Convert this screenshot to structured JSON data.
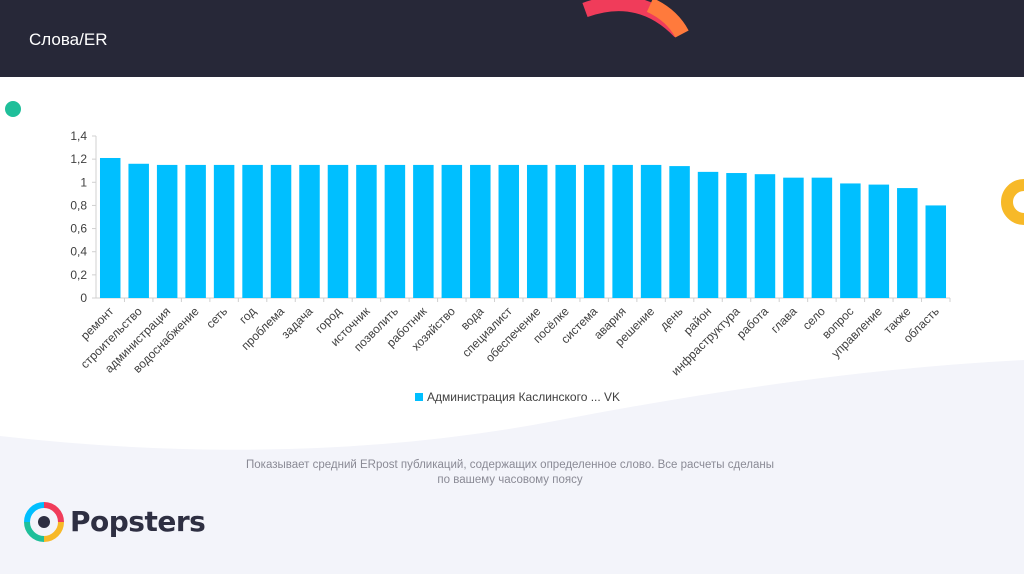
{
  "header": {
    "title": "Слова/ER"
  },
  "caption": {
    "line1": "Показывает средний ERpost публикаций, содержащих определенное слово. Все расчеты сделаны",
    "line2": "по вашему часовому поясу"
  },
  "brand": {
    "name": "Popsters"
  },
  "colors": {
    "header_bg": "#272838",
    "bar": "#00bfff",
    "accent_red": "#f03c5a",
    "accent_orange": "#ff7a3c",
    "accent_yellow": "#f7b928",
    "accent_green": "#1fbf9a"
  },
  "chart_data": {
    "type": "bar",
    "title": "",
    "xlabel": "",
    "ylabel": "",
    "ylim": [
      0,
      1.4
    ],
    "yticks": [
      "0",
      "0,2",
      "0,4",
      "0,6",
      "0,8",
      "1",
      "1,2",
      "1,4"
    ],
    "legend_position": "bottom",
    "grid": false,
    "categories": [
      "ремонт",
      "строительство",
      "администрация",
      "водоснабжение",
      "сеть",
      "год",
      "проблема",
      "задача",
      "город",
      "источник",
      "позволить",
      "работник",
      "хозяйство",
      "вода",
      "специалист",
      "обеспечение",
      "посёлке",
      "система",
      "авария",
      "решение",
      "день",
      "район",
      "инфраструктура",
      "работа",
      "глава",
      "село",
      "вопрос",
      "управление",
      "также",
      "область"
    ],
    "series": [
      {
        "name": "Администрация Каслинского ... VK",
        "values": [
          1.21,
          1.16,
          1.15,
          1.15,
          1.15,
          1.15,
          1.15,
          1.15,
          1.15,
          1.15,
          1.15,
          1.15,
          1.15,
          1.15,
          1.15,
          1.15,
          1.15,
          1.15,
          1.15,
          1.15,
          1.14,
          1.09,
          1.08,
          1.07,
          1.04,
          1.04,
          0.99,
          0.98,
          0.95,
          0.8
        ]
      }
    ]
  }
}
